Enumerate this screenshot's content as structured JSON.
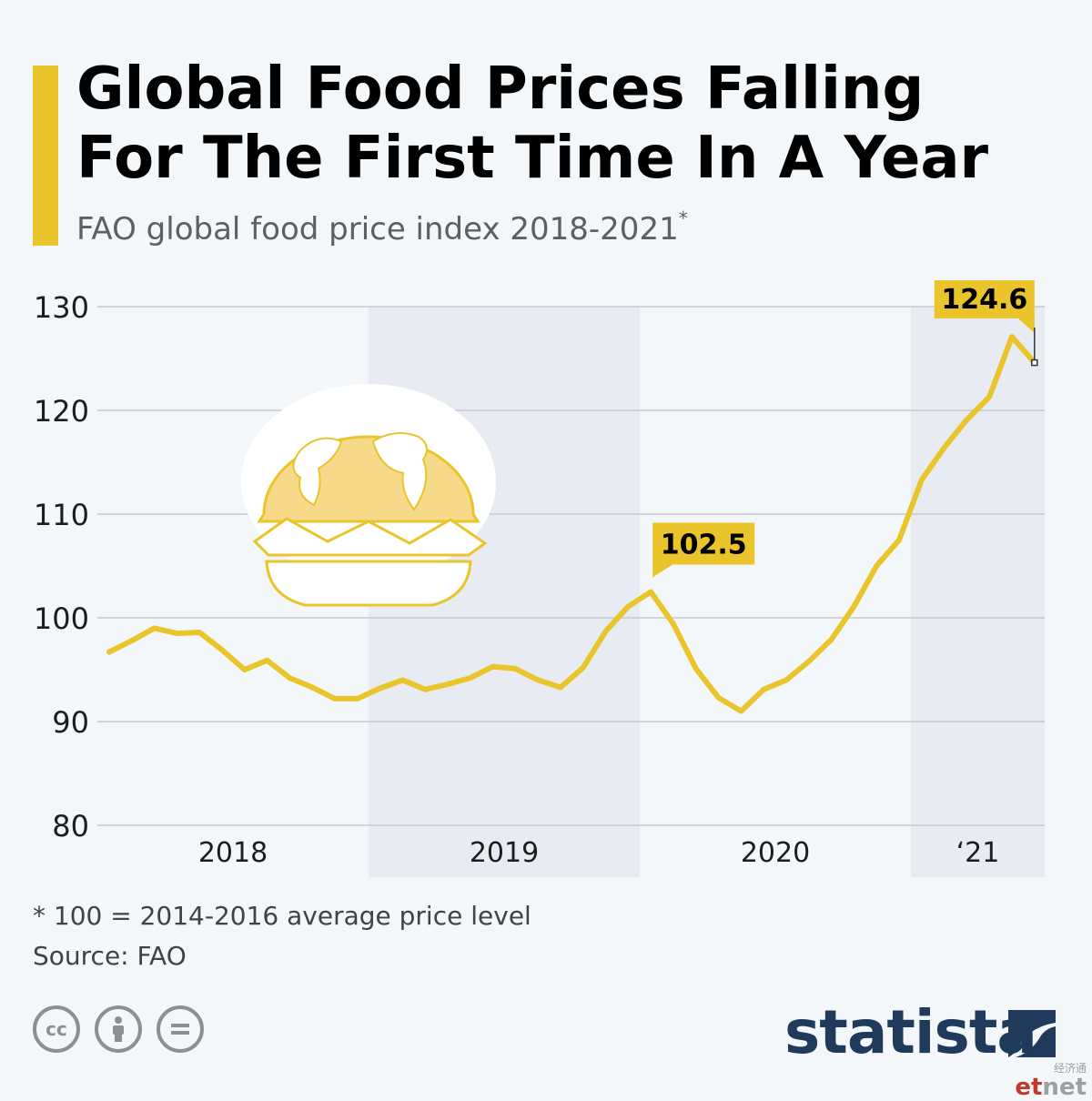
{
  "header": {
    "title_line1": "Global Food Prices Falling",
    "title_line2": "For The First Time In A Year",
    "subtitle": "FAO global food price index 2018-2021",
    "subtitle_mark": "*"
  },
  "colors": {
    "accent": "#e9c42b",
    "line": "#e9c42b",
    "band": "#e8ecf2",
    "grid": "#c5c9cd",
    "text": "#1d1d1d",
    "brand": "#1f3a5a"
  },
  "chart_data": {
    "type": "line",
    "title": "Global Food Prices Falling For The First Time In A Year",
    "subtitle": "FAO global food price index 2018-2021*",
    "xlabel": "",
    "ylabel": "",
    "ylim": [
      80,
      130
    ],
    "yticks": [
      80,
      90,
      100,
      110,
      120,
      130
    ],
    "grid": true,
    "year_labels": [
      "2018",
      "2019",
      "2020",
      "‘21"
    ],
    "shaded_years": [
      "2019",
      "‘21"
    ],
    "x": [
      "2018-01",
      "2018-02",
      "2018-03",
      "2018-04",
      "2018-05",
      "2018-06",
      "2018-07",
      "2018-08",
      "2018-09",
      "2018-10",
      "2018-11",
      "2018-12",
      "2019-01",
      "2019-02",
      "2019-03",
      "2019-04",
      "2019-05",
      "2019-06",
      "2019-07",
      "2019-08",
      "2019-09",
      "2019-10",
      "2019-11",
      "2019-12",
      "2020-01",
      "2020-02",
      "2020-03",
      "2020-04",
      "2020-05",
      "2020-06",
      "2020-07",
      "2020-08",
      "2020-09",
      "2020-10",
      "2020-11",
      "2020-12",
      "2021-01",
      "2021-02",
      "2021-03",
      "2021-04",
      "2021-05",
      "2021-06"
    ],
    "series": [
      {
        "values": [
          96.7,
          97.8,
          99.0,
          98.5,
          98.6,
          96.9,
          95.0,
          95.9,
          94.2,
          93.3,
          92.2,
          92.2,
          93.2,
          94.0,
          93.1,
          93.6,
          94.2,
          95.3,
          95.1,
          94.0,
          93.3,
          95.2,
          98.7,
          101.1,
          102.5,
          99.4,
          95.1,
          92.3,
          91.0,
          93.1,
          94.0,
          95.8,
          97.9,
          101.1,
          105.0,
          107.5,
          113.3,
          116.4,
          119.1,
          121.3,
          127.1,
          124.6
        ]
      }
    ],
    "annotations": [
      {
        "x": "2020-01",
        "y": 102.5,
        "label": "102.5"
      },
      {
        "x": "2021-06",
        "y": 124.6,
        "label": "124.6"
      }
    ]
  },
  "footer": {
    "footnote": "* 100 = 2014-2016 average price level",
    "source": "Source: FAO",
    "license_icons": [
      "creative-commons-icon",
      "attribution-icon",
      "no-derivatives-icon"
    ],
    "brand": "statista",
    "watermark_cn": "经济通",
    "watermark_pre": "et",
    "watermark_post": "net"
  }
}
